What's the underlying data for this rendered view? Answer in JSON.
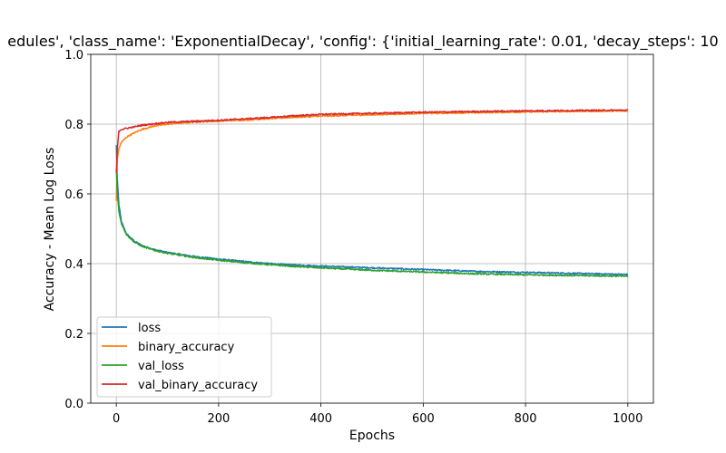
{
  "chart_data": {
    "type": "line",
    "title": "edules', 'class_name': 'ExponentialDecay', 'config': {'initial_learning_rate': 0.01, 'decay_steps': 10",
    "xlabel": "Epochs",
    "ylabel": "Accuracy - Mean Log Loss",
    "xlim": [
      -50,
      1050
    ],
    "ylim": [
      0.0,
      1.0
    ],
    "x_ticks": [
      0,
      200,
      400,
      600,
      800,
      1000
    ],
    "x_tick_labels": [
      "0",
      "200",
      "400",
      "600",
      "800",
      "1000"
    ],
    "y_ticks": [
      0.0,
      0.2,
      0.4,
      0.6,
      0.8,
      1.0
    ],
    "y_tick_labels": [
      "0.0",
      "0.2",
      "0.4",
      "0.6",
      "0.8",
      "1.0"
    ],
    "grid": true,
    "legend_position": "lower-left",
    "series": [
      {
        "name": "loss",
        "color": "#1f77b4",
        "x": [
          0,
          2,
          5,
          10,
          20,
          35,
          50,
          75,
          100,
          150,
          200,
          250,
          300,
          350,
          400,
          500,
          600,
          700,
          800,
          900,
          1000
        ],
        "y": [
          0.74,
          0.64,
          0.57,
          0.52,
          0.485,
          0.465,
          0.452,
          0.44,
          0.432,
          0.421,
          0.413,
          0.406,
          0.4,
          0.396,
          0.393,
          0.388,
          0.383,
          0.378,
          0.375,
          0.372,
          0.369
        ]
      },
      {
        "name": "binary_accuracy",
        "color": "#ff7f0e",
        "x": [
          0,
          2,
          5,
          10,
          20,
          35,
          50,
          75,
          100,
          150,
          200,
          250,
          300,
          350,
          400,
          500,
          600,
          700,
          800,
          900,
          1000
        ],
        "y": [
          0.58,
          0.7,
          0.73,
          0.748,
          0.763,
          0.775,
          0.785,
          0.795,
          0.8,
          0.806,
          0.809,
          0.812,
          0.816,
          0.82,
          0.823,
          0.827,
          0.831,
          0.833,
          0.835,
          0.837,
          0.838
        ]
      },
      {
        "name": "val_loss",
        "color": "#2ca02c",
        "x": [
          0,
          2,
          5,
          10,
          20,
          35,
          50,
          75,
          100,
          150,
          200,
          250,
          300,
          350,
          400,
          500,
          600,
          700,
          800,
          900,
          1000
        ],
        "y": [
          0.67,
          0.6,
          0.55,
          0.515,
          0.483,
          0.462,
          0.45,
          0.438,
          0.43,
          0.418,
          0.41,
          0.403,
          0.397,
          0.392,
          0.388,
          0.381,
          0.376,
          0.371,
          0.368,
          0.366,
          0.364
        ]
      },
      {
        "name": "val_binary_accuracy",
        "color": "#d62728",
        "x": [
          0,
          2,
          5,
          10,
          20,
          35,
          50,
          75,
          100,
          150,
          200,
          250,
          300,
          350,
          400,
          500,
          600,
          700,
          800,
          900,
          1000
        ],
        "y": [
          0.66,
          0.73,
          0.78,
          0.785,
          0.788,
          0.792,
          0.797,
          0.801,
          0.805,
          0.808,
          0.811,
          0.815,
          0.819,
          0.824,
          0.828,
          0.831,
          0.834,
          0.836,
          0.838,
          0.839,
          0.84
        ]
      }
    ]
  }
}
